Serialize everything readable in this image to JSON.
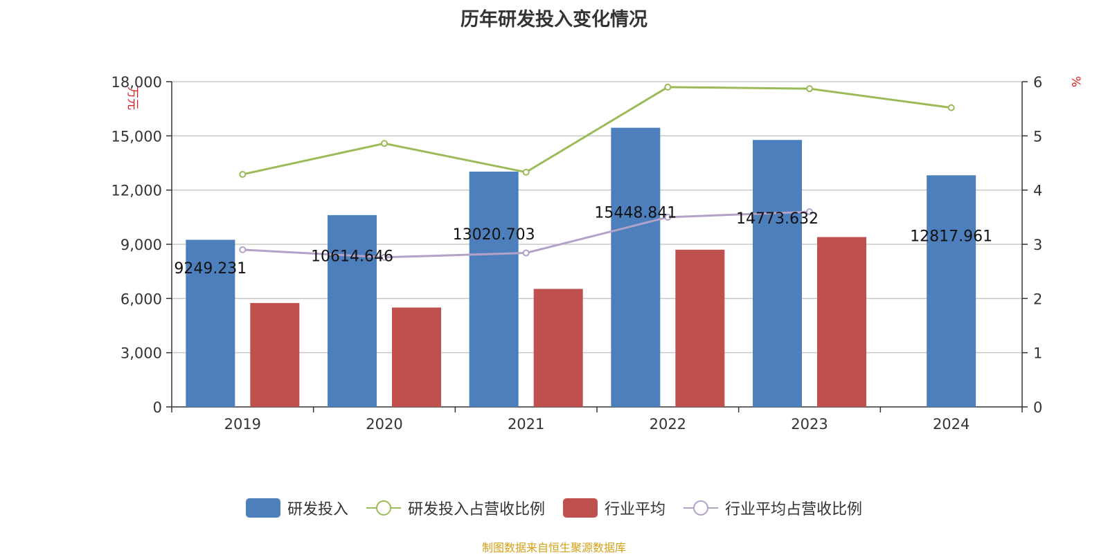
{
  "chart_data": {
    "type": "bar",
    "title": "历年研发投入变化情况",
    "categories": [
      "2019",
      "2020",
      "2021",
      "2022",
      "2023",
      "2024"
    ],
    "y_left_label": "万元",
    "y_right_label": "%",
    "y_left_lim": [
      0,
      18000
    ],
    "y_left_ticks": [
      "0",
      "3,000",
      "6,000",
      "9,000",
      "12,000",
      "15,000",
      "18,000"
    ],
    "y_right_lim": [
      0,
      6
    ],
    "y_right_ticks": [
      "0",
      "1",
      "2",
      "3",
      "4",
      "5",
      "6"
    ],
    "series": [
      {
        "name": "研发投入",
        "type": "bar",
        "axis": "left",
        "color": "#4e7fbd",
        "values": [
          9249.231,
          10614.646,
          13020.703,
          15448.841,
          14773.632,
          12817.961
        ],
        "labels": [
          "9249.231",
          "10614.646",
          "13020.703",
          "15448.841",
          "14773.632",
          "12817.961"
        ]
      },
      {
        "name": "研发投入占营收比例",
        "type": "line",
        "axis": "right",
        "color": "#9bbb59",
        "values": [
          4.29,
          4.86,
          4.33,
          5.9,
          5.87,
          5.52
        ]
      },
      {
        "name": "行业平均",
        "type": "bar",
        "axis": "left",
        "color": "#c0504d",
        "values": [
          5750,
          5500,
          6530,
          8700,
          9400,
          null
        ]
      },
      {
        "name": "行业平均占营收比例",
        "type": "line",
        "axis": "right",
        "color": "#b3a2c7",
        "values": [
          2.9,
          2.76,
          2.84,
          3.5,
          3.6,
          null
        ]
      }
    ],
    "grid": true,
    "legend_position": "bottom"
  },
  "legend": {
    "items": [
      {
        "label": "研发投入",
        "kind": "bar",
        "color": "#4e7fbd"
      },
      {
        "label": "研发投入占营收比例",
        "kind": "line",
        "color": "#9bbb59"
      },
      {
        "label": "行业平均",
        "kind": "bar",
        "color": "#c0504d"
      },
      {
        "label": "行业平均占营收比例",
        "kind": "line",
        "color": "#b3a2c7"
      }
    ]
  },
  "source": "制图数据来自恒生聚源数据库"
}
